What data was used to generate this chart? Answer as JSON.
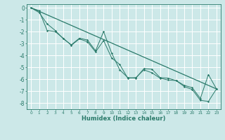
{
  "xlabel": "Humidex (Indice chaleur)",
  "ylabel": "",
  "xlim": [
    -0.5,
    23.5
  ],
  "ylim": [
    -8.5,
    0.3
  ],
  "yticks": [
    0,
    -1,
    -2,
    -3,
    -4,
    -5,
    -6,
    -7,
    -8
  ],
  "xticks": [
    0,
    1,
    2,
    3,
    4,
    5,
    6,
    7,
    8,
    9,
    10,
    11,
    12,
    13,
    14,
    15,
    16,
    17,
    18,
    19,
    20,
    21,
    22,
    23
  ],
  "bg_color": "#cce8e8",
  "grid_color": "#ffffff",
  "line_color": "#2a7a6a",
  "series1_x": [
    0,
    1,
    2,
    3,
    4,
    5,
    6,
    7,
    8,
    9,
    10,
    11,
    12,
    13,
    14,
    15,
    16,
    17,
    18,
    19,
    20,
    21,
    22,
    23
  ],
  "series1_y": [
    0.0,
    -0.4,
    -1.35,
    -1.9,
    -2.6,
    -3.1,
    -2.55,
    -2.7,
    -3.6,
    -2.0,
    -3.8,
    -5.2,
    -5.85,
    -5.9,
    -5.1,
    -5.15,
    -5.85,
    -5.9,
    -6.1,
    -6.5,
    -6.7,
    -7.6,
    -5.6,
    -6.8
  ],
  "series2_x": [
    0,
    1,
    2,
    3,
    4,
    5,
    6,
    7,
    8,
    9,
    10,
    11,
    12,
    13,
    14,
    15,
    16,
    17,
    18,
    19,
    20,
    21,
    22,
    23
  ],
  "series2_y": [
    0.0,
    -0.25,
    -1.9,
    -2.0,
    -2.55,
    -3.15,
    -2.6,
    -2.85,
    -3.7,
    -2.75,
    -4.2,
    -4.75,
    -5.9,
    -5.85,
    -5.2,
    -5.45,
    -5.9,
    -6.05,
    -6.1,
    -6.6,
    -6.85,
    -7.75,
    -7.85,
    -6.8
  ],
  "trend_x": [
    0,
    23
  ],
  "trend_y": [
    0.0,
    -6.8
  ]
}
